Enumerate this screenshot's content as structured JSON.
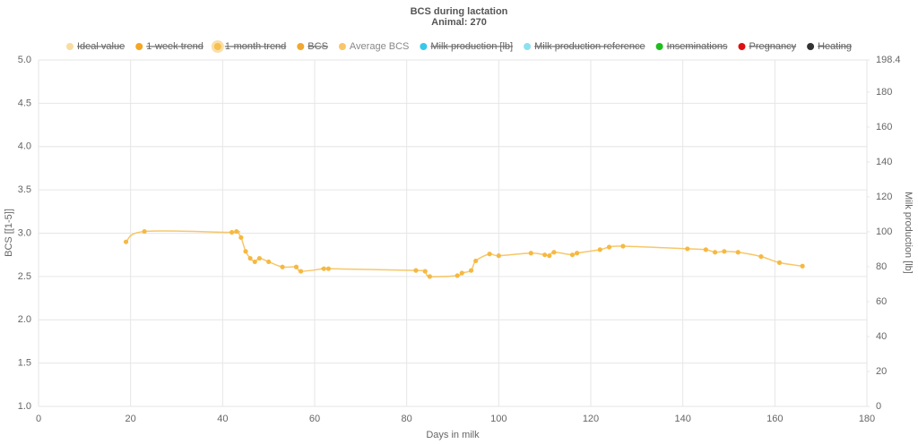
{
  "chart_data": {
    "type": "line",
    "title": "BCS during lactation",
    "subtitle": "Animal: 270",
    "x_label": "Days in milk",
    "y_label": "BCS [[1-5]]",
    "y2_label": "Milk production [lb]",
    "legend": [
      {
        "name": "Ideal value",
        "color": "#f8dca0",
        "hidden": true
      },
      {
        "name": "1-week trend",
        "color": "#f5a623",
        "hidden": true
      },
      {
        "name": "1-month trend",
        "color": "#f5c04f",
        "hidden": true
      },
      {
        "name": "BCS",
        "color": "#f0a830",
        "hidden": true
      },
      {
        "name": "Average BCS",
        "color": "#f8c66a",
        "hidden": false
      },
      {
        "name": "Milk production [lb]",
        "color": "#36c9e8",
        "hidden": true
      },
      {
        "name": "Milk production reference",
        "color": "#8ee0f0",
        "hidden": true
      },
      {
        "name": "Inseminations",
        "color": "#1ebe1e",
        "hidden": true
      },
      {
        "name": "Pregnancy",
        "color": "#e01010",
        "hidden": true
      },
      {
        "name": "Heating",
        "color": "#333333",
        "hidden": true
      }
    ],
    "x": [
      19,
      23,
      42,
      43,
      44,
      45,
      46,
      47,
      48,
      50,
      53,
      56,
      57,
      62,
      63,
      82,
      84,
      85,
      91,
      92,
      94,
      95,
      98,
      100,
      107,
      110,
      111,
      112,
      116,
      117,
      122,
      124,
      127,
      141,
      145,
      147,
      149,
      152,
      157,
      161,
      166
    ],
    "series": [
      {
        "name": "Average BCS",
        "color": "#f5b942",
        "values": [
          2.9,
          3.02,
          3.01,
          3.02,
          2.95,
          2.79,
          2.71,
          2.67,
          2.71,
          2.67,
          2.61,
          2.61,
          2.56,
          2.59,
          2.59,
          2.57,
          2.56,
          2.5,
          2.51,
          2.54,
          2.57,
          2.68,
          2.76,
          2.74,
          2.77,
          2.75,
          2.74,
          2.78,
          2.75,
          2.77,
          2.81,
          2.84,
          2.85,
          2.82,
          2.81,
          2.78,
          2.79,
          2.78,
          2.73,
          2.66,
          2.62
        ]
      }
    ],
    "xlim": [
      0,
      180
    ],
    "xticks": [
      0,
      20,
      40,
      60,
      80,
      100,
      120,
      140,
      160,
      180
    ],
    "ylim": [
      1,
      5
    ],
    "yticks": [
      {
        "value": 1,
        "label": "1.0"
      },
      1.5,
      {
        "value": 2,
        "label": "2.0"
      },
      2.5,
      {
        "value": 3,
        "label": "3.0"
      },
      3.5,
      {
        "value": 4,
        "label": "4.0"
      },
      4.5,
      {
        "value": 5,
        "label": "5.0"
      }
    ],
    "y2lim": [
      0,
      198.4
    ],
    "y2ticks": [
      0,
      20,
      40,
      60,
      80,
      100,
      120,
      140,
      160,
      180,
      198.4
    ],
    "grid": true
  }
}
